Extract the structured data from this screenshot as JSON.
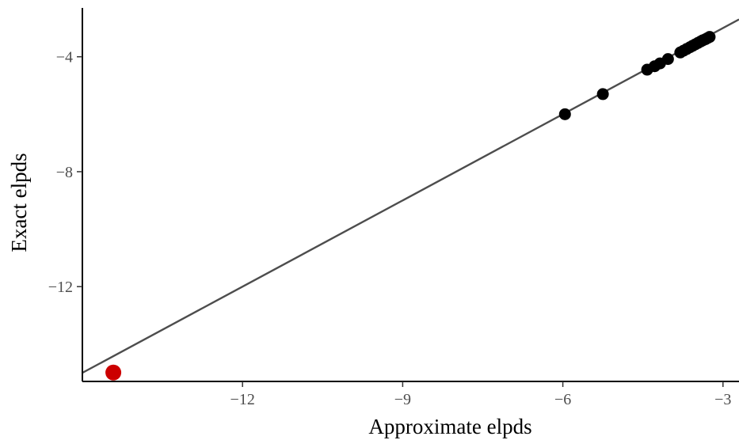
{
  "chart_data": {
    "type": "scatter",
    "title": "",
    "xlabel": "Approximate elpds",
    "ylabel": "Exact elpds",
    "xlim": [
      -15.0,
      -2.7
    ],
    "ylim": [
      -15.3,
      -2.3
    ],
    "xticks": [
      -12,
      -9,
      -6,
      -3
    ],
    "xtick_labels": [
      "−12",
      "−9",
      "−6",
      "−3"
    ],
    "yticks": [
      -4,
      -8,
      -12
    ],
    "ytick_labels": [
      "−4",
      "−8",
      "−12"
    ],
    "grid": false,
    "reference_line": {
      "type": "identity",
      "slope": 1,
      "intercept": 0,
      "color": "#4d4d4d"
    },
    "point_color": "#000000",
    "highlight_color": "#cc0000",
    "points": [
      {
        "x": -5.96,
        "y": -6.0
      },
      {
        "x": -5.25,
        "y": -5.3
      },
      {
        "x": -4.42,
        "y": -4.45
      },
      {
        "x": -4.28,
        "y": -4.33
      },
      {
        "x": -4.18,
        "y": -4.23
      },
      {
        "x": -4.03,
        "y": -4.08
      },
      {
        "x": -3.8,
        "y": -3.85
      },
      {
        "x": -3.74,
        "y": -3.79
      },
      {
        "x": -3.68,
        "y": -3.73
      },
      {
        "x": -3.62,
        "y": -3.67
      },
      {
        "x": -3.57,
        "y": -3.62
      },
      {
        "x": -3.52,
        "y": -3.57
      },
      {
        "x": -3.47,
        "y": -3.52
      },
      {
        "x": -3.42,
        "y": -3.47
      },
      {
        "x": -3.38,
        "y": -3.43
      },
      {
        "x": -3.33,
        "y": -3.39
      },
      {
        "x": -3.29,
        "y": -3.35
      },
      {
        "x": -3.25,
        "y": -3.31
      }
    ],
    "highlighted_points": [
      {
        "x": -14.42,
        "y": -14.99
      }
    ]
  }
}
